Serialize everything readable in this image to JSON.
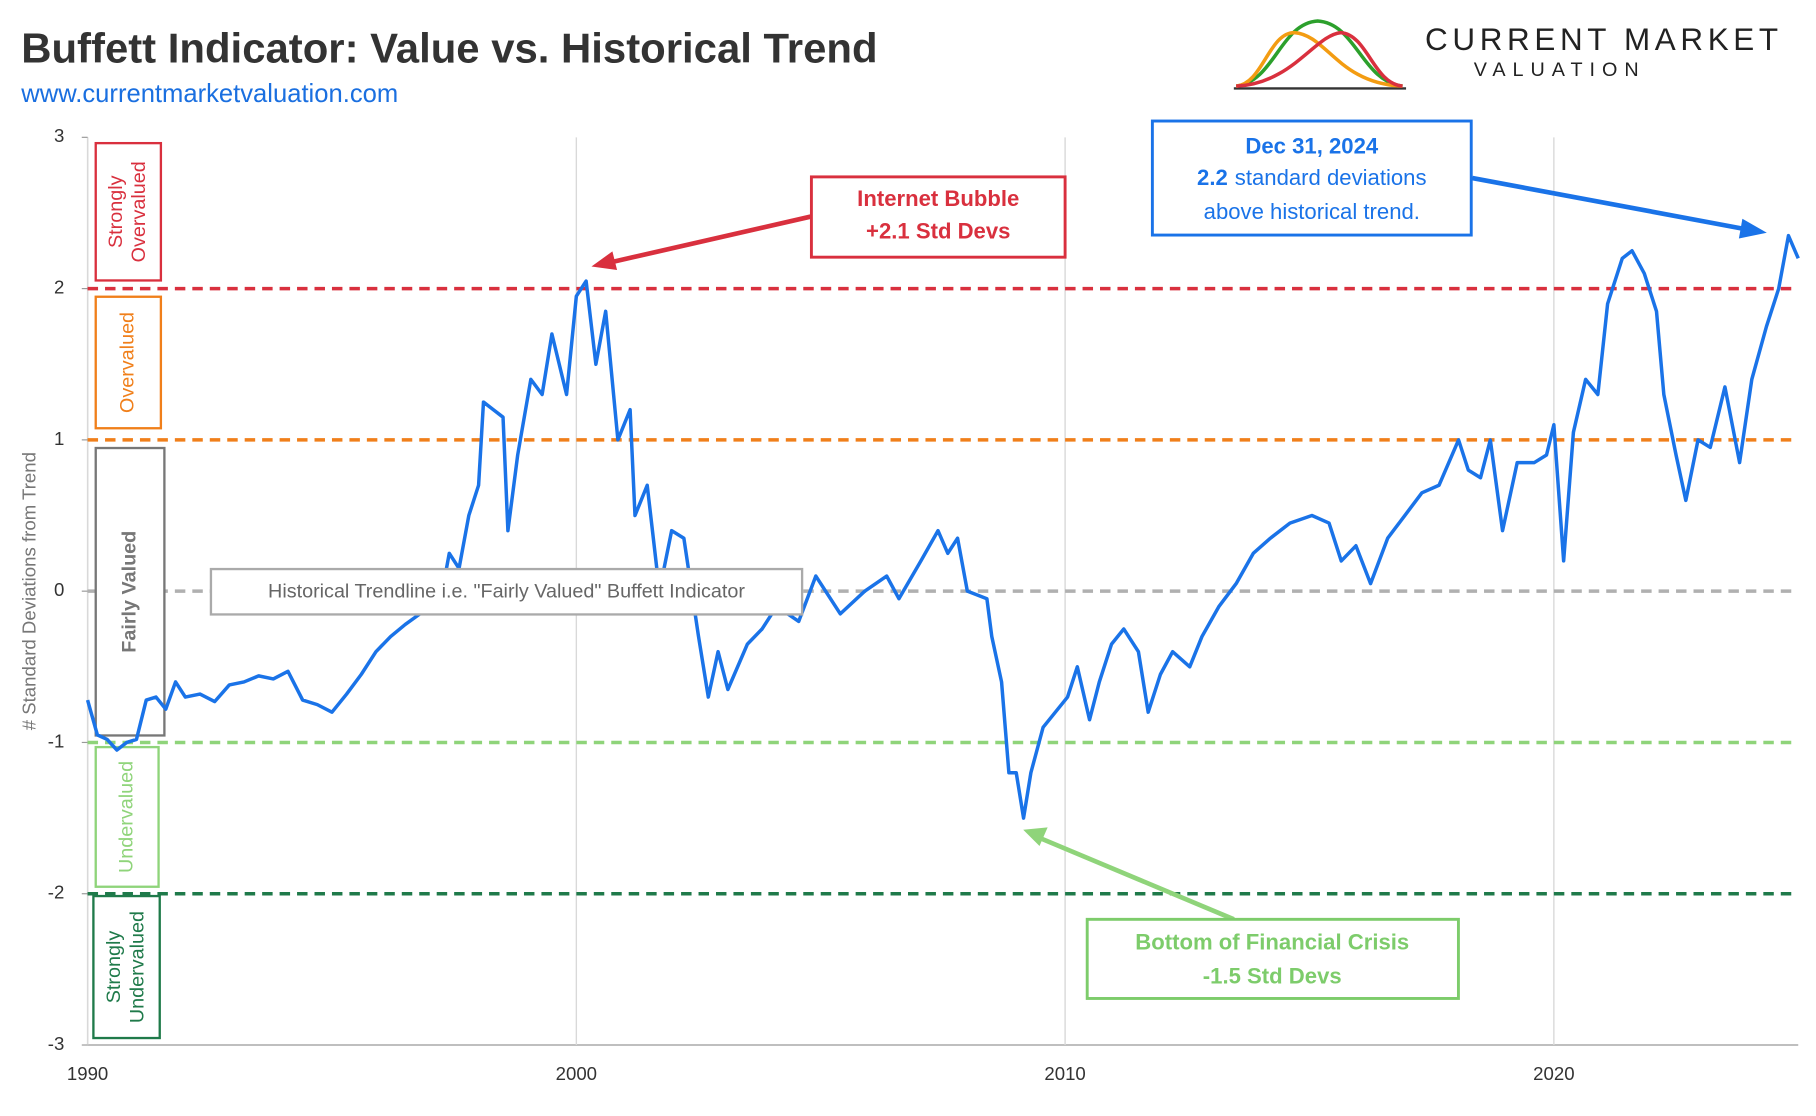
{
  "chart_data": {
    "type": "line",
    "title": "Buffett Indicator: Value vs. Historical Trend",
    "subtitle": "www.currentmarketvaluation.com",
    "y_label": "# Standard Deviations from Trend",
    "x": [
      1990.0,
      1990.2,
      1990.4,
      1990.6,
      1990.8,
      1991.0,
      1991.2,
      1991.4,
      1991.6,
      1991.8,
      1992.0,
      1992.3,
      1992.6,
      1992.9,
      1993.2,
      1993.5,
      1993.8,
      1994.1,
      1994.4,
      1994.7,
      1995.0,
      1995.3,
      1995.6,
      1995.9,
      1996.2,
      1996.5,
      1996.8,
      1997.0,
      1997.2,
      1997.4,
      1997.6,
      1997.8,
      1998.0,
      1998.1,
      1998.3,
      1998.5,
      1998.6,
      1998.8,
      1999.07,
      1999.3,
      1999.5,
      1999.8,
      2000.0,
      2000.2,
      2000.4,
      2000.6,
      2000.85,
      2001.1,
      2001.2,
      2001.45,
      2001.7,
      2001.95,
      2002.2,
      2002.5,
      2002.7,
      2002.9,
      2003.1,
      2003.5,
      2003.8,
      2004.1,
      2004.55,
      2004.9,
      2005.4,
      2005.9,
      2006.35,
      2006.6,
      2007.05,
      2007.4,
      2007.6,
      2007.8,
      2008.0,
      2008.4,
      2008.5,
      2008.7,
      2008.85,
      2009.0,
      2009.15,
      2009.3,
      2009.55,
      2009.8,
      2010.05,
      2010.25,
      2010.5,
      2010.7,
      2010.95,
      2011.2,
      2011.5,
      2011.7,
      2011.95,
      2012.2,
      2012.55,
      2012.8,
      2013.15,
      2013.5,
      2013.85,
      2014.2,
      2014.6,
      2015.05,
      2015.4,
      2015.65,
      2015.95,
      2016.25,
      2016.6,
      2016.95,
      2017.3,
      2017.65,
      2018.05,
      2018.25,
      2018.5,
      2018.7,
      2018.95,
      2019.25,
      2019.6,
      2019.85,
      2020.0,
      2020.2,
      2020.4,
      2020.65,
      2020.9,
      2021.1,
      2021.4,
      2021.6,
      2021.85,
      2022.1,
      2022.25,
      2022.5,
      2022.7,
      2022.95,
      2023.2,
      2023.5,
      2023.8,
      2024.05,
      2024.35,
      2024.6,
      2024.8,
      2025.0
    ],
    "series": [
      {
        "color": "#1a73e8",
        "values": [
          -0.72,
          -0.95,
          -0.98,
          -1.05,
          -1.0,
          -0.98,
          -0.72,
          -0.7,
          -0.78,
          -0.6,
          -0.7,
          -0.68,
          -0.73,
          -0.62,
          -0.6,
          -0.56,
          -0.58,
          -0.53,
          -0.72,
          -0.75,
          -0.8,
          -0.68,
          -0.55,
          -0.4,
          -0.3,
          -0.22,
          -0.15,
          -0.05,
          -0.1,
          0.25,
          0.15,
          0.5,
          0.7,
          1.25,
          1.2,
          1.15,
          0.4,
          0.9,
          1.4,
          1.3,
          1.7,
          1.3,
          1.95,
          2.05,
          1.5,
          1.85,
          1.0,
          1.2,
          0.5,
          0.7,
          0.0,
          0.4,
          0.35,
          -0.3,
          -0.7,
          -0.4,
          -0.65,
          -0.35,
          -0.25,
          -0.1,
          -0.2,
          0.1,
          -0.15,
          0.0,
          0.1,
          -0.05,
          0.2,
          0.4,
          0.25,
          0.35,
          0.0,
          -0.05,
          -0.3,
          -0.6,
          -1.2,
          -1.2,
          -1.5,
          -1.2,
          -0.9,
          -0.8,
          -0.7,
          -0.5,
          -0.85,
          -0.6,
          -0.35,
          -0.25,
          -0.4,
          -0.8,
          -0.55,
          -0.4,
          -0.5,
          -0.3,
          -0.1,
          0.05,
          0.25,
          0.35,
          0.45,
          0.5,
          0.45,
          0.2,
          0.3,
          0.05,
          0.35,
          0.5,
          0.65,
          0.7,
          1.0,
          0.8,
          0.75,
          1.0,
          0.4,
          0.85,
          0.85,
          0.9,
          1.1,
          0.2,
          1.05,
          1.4,
          1.3,
          1.9,
          2.2,
          2.25,
          2.1,
          1.85,
          1.3,
          0.9,
          0.6,
          1.0,
          0.95,
          1.35,
          0.85,
          1.4,
          1.75,
          2.0,
          2.35,
          2.2
        ]
      }
    ],
    "xlim": [
      1990,
      2025
    ],
    "ylim": [
      -3,
      3
    ],
    "xticks": [
      1990,
      2000,
      2010,
      2020
    ],
    "yticks": [
      -3,
      -2,
      -1,
      0,
      1,
      2,
      3
    ],
    "grid": "x",
    "reference_lines": [
      {
        "value": 2,
        "color": "#d9303e"
      },
      {
        "value": 1,
        "color": "#f07f1a"
      },
      {
        "value": 0,
        "color": "#b0b0b0"
      },
      {
        "value": -1,
        "color": "#8fd47a"
      },
      {
        "value": -2,
        "color": "#1f7a4a"
      }
    ],
    "bands": [
      {
        "lines": [
          "Strongly",
          "Overvalued"
        ],
        "color": "#d9303e"
      },
      {
        "lines": [
          "Overvalued"
        ],
        "color": "#f07f1a"
      },
      {
        "lines": [
          "Fairly Valued"
        ],
        "color": "#777777"
      },
      {
        "lines": [
          "Undervalued"
        ],
        "color": "#8fd47a"
      },
      {
        "lines": [
          "Strongly",
          "Undervalued"
        ],
        "color": "#1f7a4a"
      }
    ],
    "trend_label": "Historical Trendline i.e. \"Fairly Valued\" Buffett Indicator",
    "annotations": [
      {
        "color": "#d9303e",
        "lines": [
          {
            "text": "Internet Bubble"
          },
          {
            "text": "+2.1 Std Devs"
          }
        ]
      },
      {
        "color": "#1a73e8",
        "lines": [
          {
            "text": "Dec 31, 2024"
          },
          {
            "bold": "2.2",
            "text": "standard deviations"
          },
          {
            "text": "above historical trend."
          }
        ]
      },
      {
        "color": "#7dcc6b",
        "lines": [
          {
            "text": "Bottom of Financial Crisis"
          },
          {
            "text": "-1.5 Std Devs"
          }
        ]
      }
    ]
  },
  "logo": {
    "line1": "CURRENT MARKET",
    "line2": "VALUATION"
  }
}
